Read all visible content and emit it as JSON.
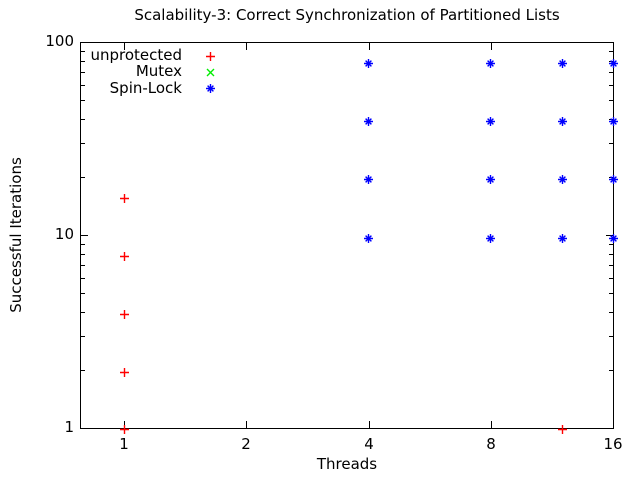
{
  "title": "Scalability-3: Correct Synchronization of Partitioned Lists",
  "x_axis": {
    "label": "Threads",
    "tick_labels": [
      "1",
      "2",
      "4",
      "8",
      "16"
    ]
  },
  "y_axis": {
    "label": "Successful Iterations",
    "tick_labels": [
      "1",
      "10",
      "100"
    ]
  },
  "colors": {
    "background": "#ffffff",
    "axis": "#000000",
    "text": "#000000"
  },
  "chart_data": {
    "type": "scatter",
    "title": "Scalability-3: Correct Synchronization of Partitioned Lists",
    "xlabel": "Threads",
    "ylabel": "Successful Iterations",
    "x_scale": "log2",
    "y_scale": "log10",
    "xlim": [
      0.78,
      16
    ],
    "ylim": [
      1,
      100
    ],
    "x_ticks": [
      1,
      2,
      4,
      8,
      16
    ],
    "y_ticks": [
      1,
      10,
      100
    ],
    "y_minor_ticks": true,
    "grid": false,
    "legend_position": "top-left",
    "series": [
      {
        "name": "unprotected",
        "marker": "plus",
        "color": "#ff0000",
        "points": [
          [
            1,
            16
          ],
          [
            1,
            8
          ],
          [
            1,
            4
          ],
          [
            1,
            2
          ],
          [
            1,
            1
          ],
          [
            12,
            1
          ]
        ]
      },
      {
        "name": "Mutex",
        "marker": "cross",
        "color": "#00ee00",
        "points": [],
        "note": "no markers visible in plot area; presumed coincident with Spin-Lock points"
      },
      {
        "name": "Spin-Lock",
        "marker": "asterisk",
        "color": "#0000ff",
        "points": [
          [
            4,
            10
          ],
          [
            4,
            20
          ],
          [
            4,
            40
          ],
          [
            4,
            80
          ],
          [
            8,
            10
          ],
          [
            8,
            20
          ],
          [
            8,
            40
          ],
          [
            8,
            80
          ],
          [
            12,
            10
          ],
          [
            12,
            20
          ],
          [
            12,
            40
          ],
          [
            12,
            80
          ],
          [
            16,
            10
          ],
          [
            16,
            20
          ],
          [
            16,
            40
          ],
          [
            16,
            80
          ]
        ]
      }
    ]
  }
}
